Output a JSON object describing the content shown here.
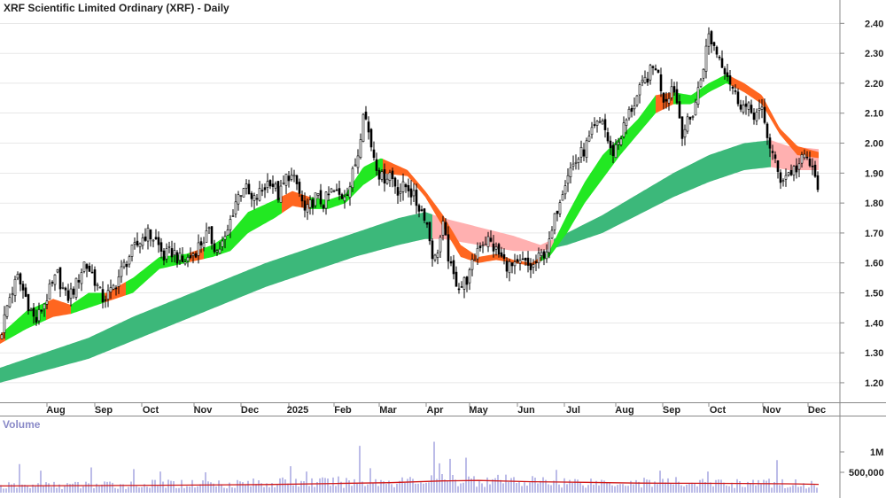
{
  "chart_data": [
    {
      "type": "candlestick",
      "title": "XRF Scientific Limited Ordinary (XRF) - Daily",
      "y_ticks": [
        "1.20",
        "1.30",
        "1.40",
        "1.50",
        "1.60",
        "1.70",
        "1.80",
        "1.90",
        "2.00",
        "2.10",
        "2.20",
        "2.30",
        "2.40"
      ],
      "ylim": [
        1.15,
        2.45
      ],
      "x_ticks": [
        "Aug",
        "Sep",
        "Oct",
        "Nov",
        "Dec",
        "2025",
        "Feb",
        "Mar",
        "Apr",
        "May",
        "Jun",
        "Jul",
        "Aug",
        "Sep",
        "Oct",
        "Nov",
        "Dec"
      ],
      "price_path": [
        [
          0,
          1.35
        ],
        [
          10,
          1.48
        ],
        [
          20,
          1.55
        ],
        [
          30,
          1.48
        ],
        [
          40,
          1.4
        ],
        [
          55,
          1.5
        ],
        [
          65,
          1.56
        ],
        [
          75,
          1.48
        ],
        [
          85,
          1.52
        ],
        [
          95,
          1.6
        ],
        [
          105,
          1.56
        ],
        [
          115,
          1.48
        ],
        [
          125,
          1.5
        ],
        [
          135,
          1.56
        ],
        [
          145,
          1.62
        ],
        [
          155,
          1.66
        ],
        [
          165,
          1.7
        ],
        [
          175,
          1.68
        ],
        [
          185,
          1.62
        ],
        [
          195,
          1.64
        ],
        [
          205,
          1.6
        ],
        [
          215,
          1.62
        ],
        [
          225,
          1.66
        ],
        [
          235,
          1.7
        ],
        [
          245,
          1.64
        ],
        [
          255,
          1.68
        ],
        [
          265,
          1.8
        ],
        [
          275,
          1.86
        ],
        [
          285,
          1.8
        ],
        [
          295,
          1.84
        ],
        [
          305,
          1.88
        ],
        [
          315,
          1.82
        ],
        [
          325,
          1.9
        ],
        [
          335,
          1.86
        ],
        [
          345,
          1.76
        ],
        [
          355,
          1.82
        ],
        [
          365,
          1.8
        ],
        [
          375,
          1.84
        ],
        [
          385,
          1.82
        ],
        [
          395,
          1.86
        ],
        [
          405,
          1.98
        ],
        [
          410,
          2.12
        ],
        [
          420,
          1.98
        ],
        [
          430,
          1.88
        ],
        [
          440,
          1.9
        ],
        [
          450,
          1.84
        ],
        [
          460,
          1.86
        ],
        [
          470,
          1.8
        ],
        [
          480,
          1.76
        ],
        [
          490,
          1.6
        ],
        [
          500,
          1.72
        ],
        [
          510,
          1.56
        ],
        [
          520,
          1.52
        ],
        [
          530,
          1.56
        ],
        [
          540,
          1.66
        ],
        [
          550,
          1.68
        ],
        [
          560,
          1.64
        ],
        [
          570,
          1.6
        ],
        [
          580,
          1.58
        ],
        [
          590,
          1.6
        ],
        [
          600,
          1.58
        ],
        [
          610,
          1.62
        ],
        [
          620,
          1.66
        ],
        [
          630,
          1.8
        ],
        [
          640,
          1.9
        ],
        [
          650,
          1.94
        ],
        [
          660,
          1.98
        ],
        [
          670,
          2.04
        ],
        [
          680,
          2.08
        ],
        [
          690,
          1.96
        ],
        [
          700,
          2.02
        ],
        [
          710,
          2.1
        ],
        [
          720,
          2.16
        ],
        [
          730,
          2.22
        ],
        [
          740,
          2.26
        ],
        [
          750,
          2.14
        ],
        [
          760,
          2.2
        ],
        [
          770,
          2.04
        ],
        [
          780,
          2.08
        ],
        [
          790,
          2.2
        ],
        [
          800,
          2.36
        ],
        [
          810,
          2.3
        ],
        [
          820,
          2.24
        ],
        [
          830,
          2.16
        ],
        [
          840,
          2.12
        ],
        [
          850,
          2.1
        ],
        [
          860,
          2.1
        ],
        [
          870,
          1.98
        ],
        [
          880,
          1.88
        ],
        [
          890,
          1.9
        ],
        [
          900,
          1.92
        ],
        [
          910,
          1.96
        ],
        [
          920,
          1.88
        ],
        [
          924,
          1.86
        ]
      ],
      "short_band": {
        "upper": [
          [
            0,
            1.36
          ],
          [
            30,
            1.44
          ],
          [
            60,
            1.48
          ],
          [
            80,
            1.46
          ],
          [
            100,
            1.5
          ],
          [
            120,
            1.5
          ],
          [
            150,
            1.55
          ],
          [
            180,
            1.62
          ],
          [
            210,
            1.63
          ],
          [
            240,
            1.66
          ],
          [
            260,
            1.7
          ],
          [
            280,
            1.77
          ],
          [
            310,
            1.81
          ],
          [
            330,
            1.84
          ],
          [
            350,
            1.82
          ],
          [
            370,
            1.81
          ],
          [
            390,
            1.83
          ],
          [
            410,
            1.92
          ],
          [
            430,
            1.95
          ],
          [
            460,
            1.91
          ],
          [
            480,
            1.84
          ],
          [
            500,
            1.76
          ],
          [
            520,
            1.66
          ],
          [
            540,
            1.62
          ],
          [
            560,
            1.63
          ],
          [
            580,
            1.61
          ],
          [
            600,
            1.6
          ],
          [
            620,
            1.64
          ],
          [
            640,
            1.76
          ],
          [
            660,
            1.87
          ],
          [
            680,
            1.96
          ],
          [
            700,
            2.02
          ],
          [
            720,
            2.08
          ],
          [
            740,
            2.16
          ],
          [
            760,
            2.17
          ],
          [
            780,
            2.16
          ],
          [
            800,
            2.2
          ],
          [
            820,
            2.23
          ],
          [
            840,
            2.2
          ],
          [
            860,
            2.16
          ],
          [
            880,
            2.05
          ],
          [
            900,
            1.99
          ],
          [
            924,
            1.97
          ]
        ],
        "lower": [
          [
            0,
            1.33
          ],
          [
            30,
            1.38
          ],
          [
            60,
            1.42
          ],
          [
            80,
            1.43
          ],
          [
            100,
            1.45
          ],
          [
            120,
            1.47
          ],
          [
            150,
            1.5
          ],
          [
            180,
            1.58
          ],
          [
            210,
            1.6
          ],
          [
            240,
            1.62
          ],
          [
            260,
            1.64
          ],
          [
            280,
            1.7
          ],
          [
            310,
            1.75
          ],
          [
            330,
            1.79
          ],
          [
            350,
            1.78
          ],
          [
            370,
            1.78
          ],
          [
            390,
            1.8
          ],
          [
            410,
            1.86
          ],
          [
            430,
            1.9
          ],
          [
            460,
            1.89
          ],
          [
            480,
            1.82
          ],
          [
            500,
            1.72
          ],
          [
            520,
            1.62
          ],
          [
            540,
            1.6
          ],
          [
            560,
            1.61
          ],
          [
            580,
            1.6
          ],
          [
            600,
            1.59
          ],
          [
            620,
            1.62
          ],
          [
            640,
            1.7
          ],
          [
            660,
            1.8
          ],
          [
            680,
            1.88
          ],
          [
            700,
            1.96
          ],
          [
            720,
            2.03
          ],
          [
            740,
            2.1
          ],
          [
            760,
            2.13
          ],
          [
            780,
            2.13
          ],
          [
            800,
            2.17
          ],
          [
            820,
            2.2
          ],
          [
            840,
            2.17
          ],
          [
            860,
            2.13
          ],
          [
            880,
            2.03
          ],
          [
            900,
            1.96
          ],
          [
            924,
            1.95
          ]
        ],
        "segments": [
          {
            "from": 0,
            "to": 6,
            "state": "down"
          },
          {
            "from": 6,
            "to": 52,
            "state": "up"
          },
          {
            "from": 52,
            "to": 80,
            "state": "down"
          },
          {
            "from": 80,
            "to": 118,
            "state": "up"
          },
          {
            "from": 118,
            "to": 142,
            "state": "down"
          },
          {
            "from": 142,
            "to": 214,
            "state": "up"
          },
          {
            "from": 214,
            "to": 230,
            "state": "down"
          },
          {
            "from": 230,
            "to": 262,
            "state": "up"
          },
          {
            "from": 262,
            "to": 295,
            "state": "up"
          },
          {
            "from": 295,
            "to": 318,
            "state": "up"
          },
          {
            "from": 318,
            "to": 350,
            "state": "down"
          },
          {
            "from": 350,
            "to": 395,
            "state": "up"
          },
          {
            "from": 395,
            "to": 432,
            "state": "up"
          },
          {
            "from": 432,
            "to": 480,
            "state": "down"
          },
          {
            "from": 480,
            "to": 560,
            "state": "down"
          },
          {
            "from": 560,
            "to": 610,
            "state": "down"
          },
          {
            "from": 610,
            "to": 700,
            "state": "up"
          },
          {
            "from": 700,
            "to": 740,
            "state": "up"
          },
          {
            "from": 740,
            "to": 760,
            "state": "down"
          },
          {
            "from": 760,
            "to": 825,
            "state": "up"
          },
          {
            "from": 825,
            "to": 924,
            "state": "down"
          }
        ]
      },
      "long_band": {
        "upper": [
          [
            0,
            1.25
          ],
          [
            50,
            1.3
          ],
          [
            100,
            1.35
          ],
          [
            150,
            1.42
          ],
          [
            200,
            1.48
          ],
          [
            250,
            1.54
          ],
          [
            300,
            1.6
          ],
          [
            350,
            1.65
          ],
          [
            400,
            1.7
          ],
          [
            450,
            1.75
          ],
          [
            480,
            1.77
          ],
          [
            500,
            1.75
          ],
          [
            540,
            1.72
          ],
          [
            580,
            1.69
          ],
          [
            610,
            1.66
          ],
          [
            640,
            1.7
          ],
          [
            680,
            1.76
          ],
          [
            720,
            1.83
          ],
          [
            760,
            1.9
          ],
          [
            800,
            1.96
          ],
          [
            840,
            2.0
          ],
          [
            870,
            2.01
          ],
          [
            890,
            1.99
          ],
          [
            924,
            1.98
          ]
        ],
        "lower": [
          [
            0,
            1.2
          ],
          [
            50,
            1.24
          ],
          [
            100,
            1.28
          ],
          [
            150,
            1.34
          ],
          [
            200,
            1.4
          ],
          [
            250,
            1.46
          ],
          [
            300,
            1.52
          ],
          [
            350,
            1.57
          ],
          [
            400,
            1.62
          ],
          [
            450,
            1.66
          ],
          [
            480,
            1.68
          ],
          [
            500,
            1.68
          ],
          [
            540,
            1.66
          ],
          [
            580,
            1.64
          ],
          [
            610,
            1.64
          ],
          [
            640,
            1.66
          ],
          [
            680,
            1.7
          ],
          [
            720,
            1.76
          ],
          [
            760,
            1.82
          ],
          [
            800,
            1.87
          ],
          [
            840,
            1.91
          ],
          [
            870,
            1.92
          ],
          [
            890,
            1.91
          ],
          [
            924,
            1.91
          ]
        ],
        "segments": [
          {
            "from": 0,
            "to": 488,
            "state": "up"
          },
          {
            "from": 488,
            "to": 625,
            "state": "down"
          },
          {
            "from": 625,
            "to": 870,
            "state": "up"
          },
          {
            "from": 870,
            "to": 924,
            "state": "down"
          }
        ]
      },
      "colors": {
        "candle": "#000000",
        "short_up": "#22e822",
        "short_down": "#ff6620",
        "long_up": "#3cb87a",
        "long_down": "#ffb0b0",
        "grid": "#d0d0d0"
      }
    },
    {
      "type": "bar",
      "title": "Volume",
      "y_ticks": [
        "1M",
        "500,000"
      ],
      "ylim": [
        0,
        1400000
      ],
      "volume_profile": [
        [
          0,
          180000
        ],
        [
          60,
          200000
        ],
        [
          120,
          210000
        ],
        [
          180,
          230000
        ],
        [
          240,
          250000
        ],
        [
          300,
          270000
        ],
        [
          360,
          280000
        ],
        [
          420,
          300000
        ],
        [
          480,
          320000
        ],
        [
          520,
          350000
        ],
        [
          560,
          330000
        ],
        [
          620,
          300000
        ],
        [
          680,
          290000
        ],
        [
          740,
          280000
        ],
        [
          800,
          270000
        ],
        [
          860,
          260000
        ],
        [
          924,
          230000
        ]
      ],
      "volume_spikes": [
        [
          22,
          700000
        ],
        [
          46,
          540000
        ],
        [
          102,
          620000
        ],
        [
          150,
          580000
        ],
        [
          180,
          520000
        ],
        [
          233,
          500000
        ],
        [
          328,
          650000
        ],
        [
          345,
          520000
        ],
        [
          405,
          1150000
        ],
        [
          418,
          600000
        ],
        [
          490,
          1250000
        ],
        [
          497,
          720000
        ],
        [
          508,
          830000
        ],
        [
          525,
          860000
        ],
        [
          629,
          560000
        ],
        [
          744,
          540000
        ],
        [
          800,
          520000
        ],
        [
          877,
          800000
        ]
      ],
      "average_line": [
        [
          0,
          165000
        ],
        [
          100,
          175000
        ],
        [
          200,
          185000
        ],
        [
          300,
          200000
        ],
        [
          380,
          225000
        ],
        [
          440,
          245000
        ],
        [
          500,
          290000
        ],
        [
          540,
          300000
        ],
        [
          600,
          270000
        ],
        [
          660,
          255000
        ],
        [
          720,
          235000
        ],
        [
          780,
          230000
        ],
        [
          840,
          225000
        ],
        [
          900,
          215000
        ],
        [
          924,
          205000
        ]
      ],
      "colors": {
        "bars": "#7a7ad0",
        "average": "#d01818"
      }
    }
  ]
}
